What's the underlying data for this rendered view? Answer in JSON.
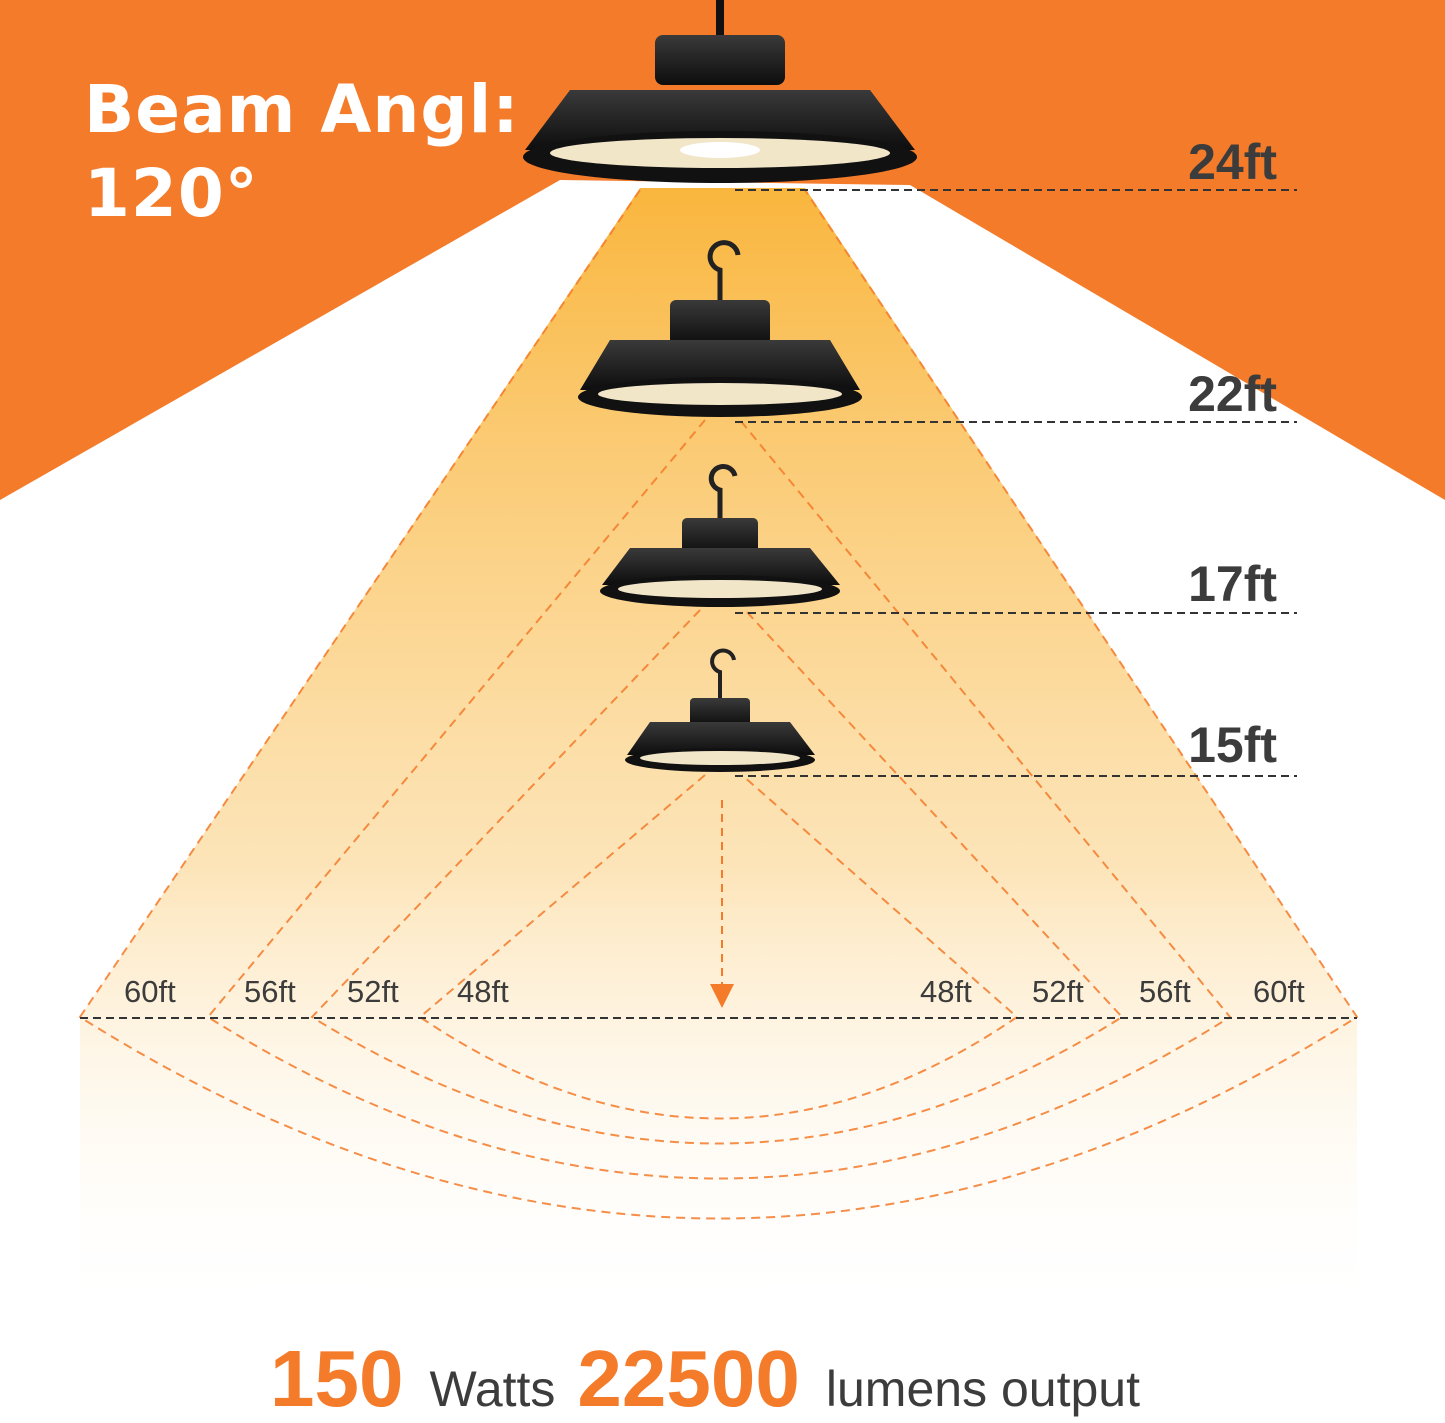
{
  "title": {
    "line1": "Beam Angl:",
    "line2": "120°"
  },
  "heights": [
    "24ft",
    "22ft",
    "17ft",
    "15ft"
  ],
  "widths_left": [
    "60ft",
    "56ft",
    "52ft",
    "48ft"
  ],
  "widths_right": [
    "48ft",
    "52ft",
    "56ft",
    "60ft"
  ],
  "footer": {
    "watts_value": "150",
    "watts_unit": "Watts",
    "lumens_value": "22500",
    "lumens_unit": "lumens output"
  },
  "colors": {
    "accent": "#F47B2A",
    "beam": "#F9B233",
    "text": "#3C3C3C"
  }
}
